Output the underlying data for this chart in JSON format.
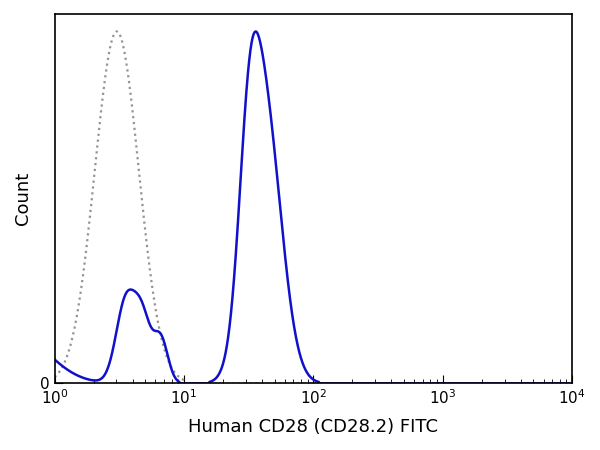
{
  "xlabel": "Human CD28 (CD28.2) FITC",
  "ylabel": "Count",
  "xlim_log": [
    0.0,
    4.0
  ],
  "ylim": [
    0,
    1.05
  ],
  "background_color": "#ffffff",
  "plot_bg_color": "#ffffff",
  "border_color": "#000000",
  "xlabel_fontsize": 13,
  "ylabel_fontsize": 13,
  "tick_label_fontsize": 11,
  "dotted_color": "#888888",
  "solid_color": "#1111cc",
  "dotted_linewidth": 1.6,
  "solid_linewidth": 1.8,
  "y_zero_label": "0",
  "figsize": [
    6.0,
    4.5
  ],
  "dpi": 100
}
